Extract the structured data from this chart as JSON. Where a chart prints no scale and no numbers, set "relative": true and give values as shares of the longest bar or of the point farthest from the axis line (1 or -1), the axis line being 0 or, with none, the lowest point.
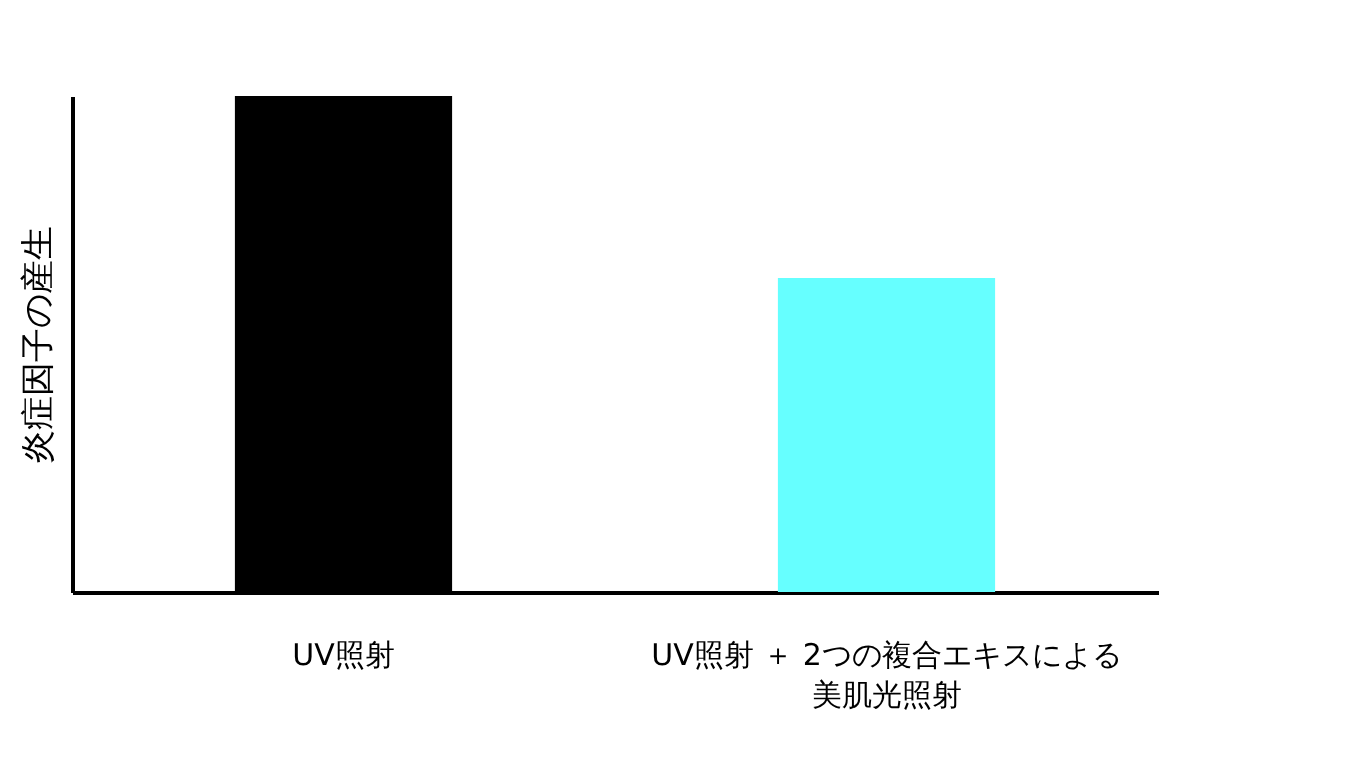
{
  "chart_data": {
    "type": "bar",
    "relative": true,
    "ylabel": "炎症因子の産生",
    "categories": [
      "UV照射",
      "UV照射 ＋ 2つの複合エキスによる美肌光照射"
    ],
    "values": [
      1,
      0.633
    ],
    "colors": [
      "#000000",
      "#66ffff"
    ],
    "grid": false
  }
}
